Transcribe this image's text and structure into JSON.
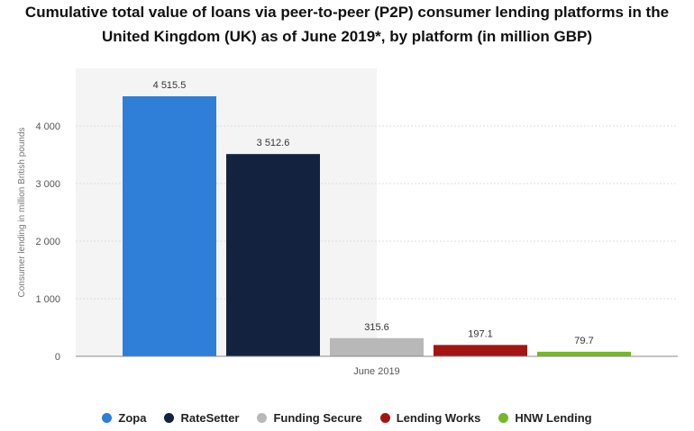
{
  "chart_data": {
    "type": "bar",
    "title": "Cumulative total value of loans via peer-to-peer (P2P) consumer lending platforms in the United Kingdom (UK) as of June 2019*, by platform (in million GBP)",
    "xlabel": "",
    "ylabel": "Consumer lending in million British pounds",
    "categories": [
      "June 2019"
    ],
    "ylim": [
      0,
      5000
    ],
    "yticks": [
      0,
      1000,
      2000,
      3000,
      4000
    ],
    "ytick_labels": [
      "0",
      "1 000",
      "2 000",
      "3 000",
      "4 000"
    ],
    "grid": true,
    "legend_position": "bottom",
    "series": [
      {
        "name": "Zopa",
        "values": [
          4515.5
        ],
        "label": "4 515.5",
        "color": "#2f7ed8"
      },
      {
        "name": "RateSetter",
        "values": [
          3512.6
        ],
        "label": "3 512.6",
        "color": "#13233f"
      },
      {
        "name": "Funding Secure",
        "values": [
          315.6
        ],
        "label": "315.6",
        "color": "#b8b8b8"
      },
      {
        "name": "Lending Works",
        "values": [
          197.1
        ],
        "label": "197.1",
        "color": "#a31515"
      },
      {
        "name": "HNW Lending",
        "values": [
          79.7
        ],
        "label": "79.7",
        "color": "#76b82a"
      }
    ]
  }
}
